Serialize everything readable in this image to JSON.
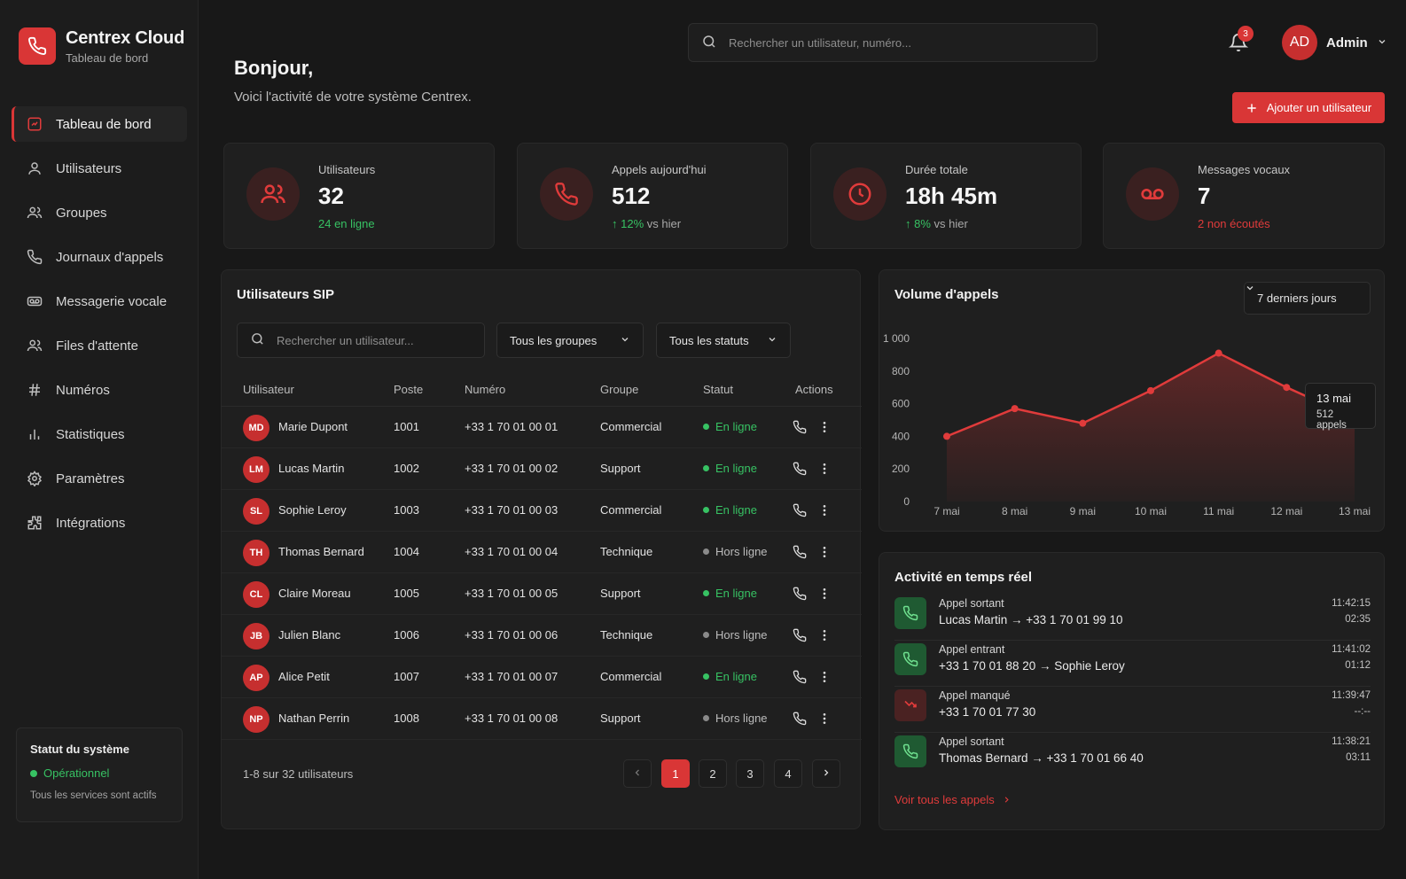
{
  "brand": {
    "title": "Centrex Cloud",
    "subtitle": "Tableau de bord"
  },
  "sidebar": {
    "items": [
      {
        "label": "Tableau de bord",
        "icon": "dashboard-icon",
        "active": true
      },
      {
        "label": "Utilisateurs",
        "icon": "user-icon"
      },
      {
        "label": "Groupes",
        "icon": "users-icon"
      },
      {
        "label": "Journaux d'appels",
        "icon": "phone-icon"
      },
      {
        "label": "Messagerie vocale",
        "icon": "voicemail-icon"
      },
      {
        "label": "Files d'attente",
        "icon": "queue-icon"
      },
      {
        "label": "Numéros",
        "icon": "hash-icon"
      },
      {
        "label": "Statistiques",
        "icon": "bar-chart-icon"
      },
      {
        "label": "Paramètres",
        "icon": "gear-icon"
      },
      {
        "label": "Intégrations",
        "icon": "puzzle-icon"
      }
    ],
    "system_status": {
      "title": "Statut du système",
      "state": "Opérationnel",
      "note": "Tous les services sont actifs"
    }
  },
  "topbar": {
    "search_placeholder": "Rechercher un utilisateur, numéro...",
    "notifications": "3",
    "user_initials": "AD",
    "user_name": "Admin"
  },
  "header": {
    "greeting": "Bonjour,",
    "subtitle": "Voici l'activité de votre système Centrex.",
    "add_button": "Ajouter un utilisateur"
  },
  "stats": [
    {
      "label": "Utilisateurs",
      "value": "32",
      "sub": "24 en ligne",
      "icon": "users-icon"
    },
    {
      "label": "Appels aujourd'hui",
      "value": "512",
      "trend": "12%",
      "trend_suffix": "vs hier",
      "icon": "phone-icon"
    },
    {
      "label": "Durée totale",
      "value": "18h 45m",
      "trend": "8%",
      "trend_suffix": "vs hier",
      "icon": "clock-icon"
    },
    {
      "label": "Messages vocaux",
      "value": "7",
      "sub": "2 non écoutés",
      "icon": "voicemail-icon"
    }
  ],
  "sip": {
    "title": "Utilisateurs SIP",
    "search_placeholder": "Rechercher un utilisateur...",
    "group_filter": "Tous les groupes",
    "status_filter": "Tous les statuts",
    "columns": [
      "Utilisateur",
      "Poste",
      "Numéro",
      "Groupe",
      "Statut",
      "Actions"
    ],
    "rows": [
      {
        "initials": "MD",
        "name": "Marie Dupont",
        "ext": "1001",
        "number": "+33 1 70 01 00 01",
        "group": "Commercial",
        "status": "En ligne",
        "online": true
      },
      {
        "initials": "LM",
        "name": "Lucas Martin",
        "ext": "1002",
        "number": "+33 1 70 01 00 02",
        "group": "Support",
        "status": "En ligne",
        "online": true
      },
      {
        "initials": "SL",
        "name": "Sophie Leroy",
        "ext": "1003",
        "number": "+33 1 70 01 00 03",
        "group": "Commercial",
        "status": "En ligne",
        "online": true
      },
      {
        "initials": "TH",
        "name": "Thomas Bernard",
        "ext": "1004",
        "number": "+33 1 70 01 00 04",
        "group": "Technique",
        "status": "Hors ligne",
        "online": false
      },
      {
        "initials": "CL",
        "name": "Claire Moreau",
        "ext": "1005",
        "number": "+33 1 70 01 00 05",
        "group": "Support",
        "status": "En ligne",
        "online": true
      },
      {
        "initials": "JB",
        "name": "Julien Blanc",
        "ext": "1006",
        "number": "+33 1 70 01 00 06",
        "group": "Technique",
        "status": "Hors ligne",
        "online": false
      },
      {
        "initials": "AP",
        "name": "Alice Petit",
        "ext": "1007",
        "number": "+33 1 70 01 00 07",
        "group": "Commercial",
        "status": "En ligne",
        "online": true
      },
      {
        "initials": "NP",
        "name": "Nathan Perrin",
        "ext": "1008",
        "number": "+33 1 70 01 00 08",
        "group": "Support",
        "status": "Hors ligne",
        "online": false
      }
    ],
    "pagination": {
      "summary": "1-8 sur 32 utilisateurs",
      "pages": [
        "1",
        "2",
        "3",
        "4"
      ],
      "current": "1"
    }
  },
  "volume": {
    "title": "Volume d'appels",
    "range": "7 derniers jours",
    "tooltip_date": "13 mai",
    "tooltip_value": "512 appels"
  },
  "chart_data": {
    "type": "area",
    "x": [
      "7 mai",
      "8 mai",
      "9 mai",
      "10 mai",
      "11 mai",
      "12 mai",
      "13 mai"
    ],
    "series": [
      {
        "values": [
          400,
          570,
          480,
          680,
          910,
          700,
          512
        ]
      }
    ],
    "yticks": [
      "0",
      "200",
      "400",
      "600",
      "800",
      "1 000"
    ],
    "ylim": [
      0,
      1000
    ],
    "grid": false
  },
  "activity": {
    "title": "Activité en temps réel",
    "events": [
      {
        "type": "Appel sortant",
        "detail": "Lucas Martin → +33 1 70 01 99 10",
        "time": "11:42:15",
        "duration": "02:35",
        "kind": "ok"
      },
      {
        "type": "Appel entrant",
        "detail": "+33 1 70 01 88 20 → Sophie Leroy",
        "time": "11:41:02",
        "duration": "01:12",
        "kind": "ok"
      },
      {
        "type": "Appel manqué",
        "detail": "+33 1 70 01 77 30",
        "time": "11:39:47",
        "duration": "--:--",
        "kind": "missed"
      },
      {
        "type": "Appel sortant",
        "detail": "Thomas Bernard → +33 1 70 01 66 40",
        "time": "11:38:21",
        "duration": "03:11",
        "kind": "ok"
      }
    ],
    "see_all": "Voir tous les appels"
  },
  "colors": {
    "accent": "#d93636",
    "online": "#37c263",
    "offline": "#8a8a8a",
    "background": "#181818",
    "card": "#1f1f1f"
  }
}
